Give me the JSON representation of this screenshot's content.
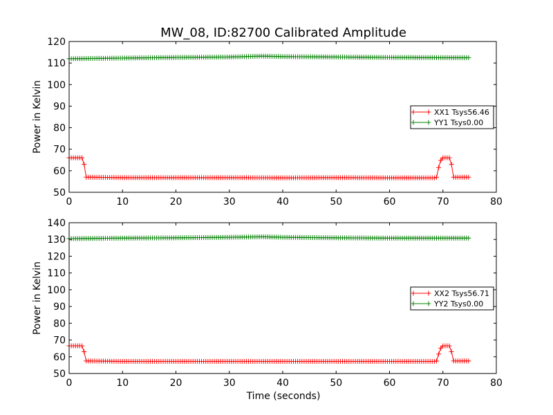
{
  "figure": {
    "title": "MW_08, ID:82700 Calibrated Amplitude",
    "xlabel": "Time (seconds)"
  },
  "colors": {
    "xx": "#ff0000",
    "yy": "#008000"
  },
  "chart_data": [
    {
      "type": "line",
      "title": "MW_08, ID:82700 Calibrated Amplitude",
      "xlabel": "",
      "ylabel": "Power in Kelvin",
      "xlim": [
        0,
        80
      ],
      "ylim": [
        50,
        120
      ],
      "xticks": [
        "0",
        "10",
        "20",
        "30",
        "40",
        "50",
        "60",
        "70",
        "80"
      ],
      "yticks": [
        "50",
        "60",
        "70",
        "80",
        "90",
        "100",
        "110",
        "120"
      ],
      "grid": false,
      "legend_position": "center-right",
      "marker": "plus",
      "series": [
        {
          "name": "XX1 Tsys56.46",
          "color": "#ff0000",
          "points": [
            [
              0,
              66
            ],
            [
              2.4,
              66
            ],
            [
              2.8,
              63
            ],
            [
              3.2,
              57
            ],
            [
              10,
              56.8
            ],
            [
              20,
              56.8
            ],
            [
              30,
              56.8
            ],
            [
              40,
              56.7
            ],
            [
              50,
              56.8
            ],
            [
              60,
              56.7
            ],
            [
              68.5,
              56.7
            ],
            [
              68.9,
              57
            ],
            [
              69.3,
              63
            ],
            [
              69.8,
              66
            ],
            [
              71.2,
              66
            ],
            [
              71.6,
              63
            ],
            [
              72,
              57
            ],
            [
              75,
              57
            ]
          ]
        },
        {
          "name": "YY1 Tsys0.00",
          "color": "#008000",
          "points": [
            [
              0,
              112
            ],
            [
              10,
              112.3
            ],
            [
              20,
              112.6
            ],
            [
              30,
              112.8
            ],
            [
              36,
              113.2
            ],
            [
              40,
              113
            ],
            [
              50,
              112.8
            ],
            [
              60,
              112.6
            ],
            [
              70,
              112.5
            ],
            [
              75,
              112.5
            ]
          ]
        }
      ]
    },
    {
      "type": "line",
      "title": "",
      "xlabel": "Time (seconds)",
      "ylabel": "Power in Kelvin",
      "xlim": [
        0,
        80
      ],
      "ylim": [
        50,
        140
      ],
      "xticks": [
        "0",
        "10",
        "20",
        "30",
        "40",
        "50",
        "60",
        "70",
        "80"
      ],
      "yticks": [
        "50",
        "60",
        "70",
        "80",
        "90",
        "100",
        "110",
        "120",
        "130",
        "140"
      ],
      "grid": false,
      "legend_position": "center-right",
      "marker": "plus",
      "series": [
        {
          "name": "XX2 Tsys56.71",
          "color": "#ff0000",
          "points": [
            [
              0,
              66.5
            ],
            [
              2.4,
              66.5
            ],
            [
              2.8,
              63
            ],
            [
              3.2,
              57.5
            ],
            [
              10,
              57.2
            ],
            [
              20,
              57.2
            ],
            [
              30,
              57.2
            ],
            [
              40,
              57.2
            ],
            [
              50,
              57.2
            ],
            [
              60,
              57.2
            ],
            [
              68.5,
              57.2
            ],
            [
              68.9,
              57.5
            ],
            [
              69.3,
              63
            ],
            [
              69.8,
              66.5
            ],
            [
              71.2,
              66.5
            ],
            [
              71.6,
              63
            ],
            [
              72,
              57.5
            ],
            [
              75,
              57.5
            ]
          ]
        },
        {
          "name": "YY2 Tsys0.00",
          "color": "#008000",
          "points": [
            [
              0,
              130.5
            ],
            [
              10,
              130.8
            ],
            [
              20,
              131
            ],
            [
              30,
              131.3
            ],
            [
              36,
              131.6
            ],
            [
              40,
              131.3
            ],
            [
              50,
              131
            ],
            [
              60,
              130.8
            ],
            [
              70,
              130.8
            ],
            [
              75,
              130.8
            ]
          ]
        }
      ]
    }
  ]
}
